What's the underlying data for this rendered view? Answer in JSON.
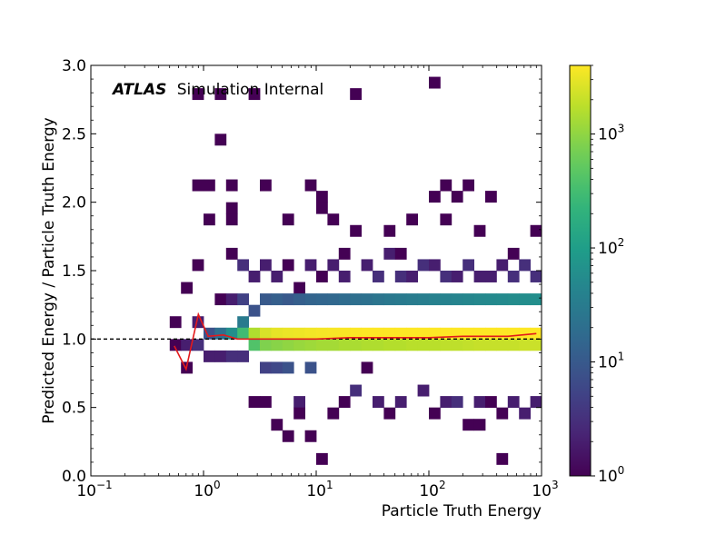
{
  "chart_data": {
    "type": "heatmap",
    "title": "",
    "xlabel": "Particle Truth Energy",
    "ylabel": "Predicted Energy / Particle Truth Energy",
    "xscale": "log",
    "xlim": [
      0.1,
      1000
    ],
    "ylim": [
      0,
      3.0
    ],
    "x_ticks": [
      {
        "value": 0.1,
        "base": "10",
        "exp": "−1"
      },
      {
        "value": 1,
        "base": "10",
        "exp": "0"
      },
      {
        "value": 10,
        "base": "10",
        "exp": "1"
      },
      {
        "value": 100,
        "base": "10",
        "exp": "2"
      },
      {
        "value": 1000,
        "base": "10",
        "exp": "3"
      }
    ],
    "y_ticks": [
      "0.0",
      "0.5",
      "1.0",
      "1.5",
      "2.0",
      "2.5",
      "3.0"
    ],
    "annotation": {
      "bold": "ATLAS",
      "text": "Simulation Internal"
    },
    "reference_line": {
      "y": 1.0,
      "style": "dashed",
      "color": "#000000"
    },
    "colorbar": {
      "scale": "log",
      "min": 1,
      "max": 4000,
      "ticks": [
        {
          "value": 1,
          "base": "10",
          "exp": "0"
        },
        {
          "value": 10,
          "base": "10",
          "exp": "1"
        },
        {
          "value": 100,
          "base": "10",
          "exp": "2"
        },
        {
          "value": 1000,
          "base": "10",
          "exp": "3"
        }
      ],
      "colormap": "viridis"
    },
    "mean_line": {
      "color": "#e31a1c",
      "x": [
        0.55,
        0.7,
        0.9,
        1.1,
        1.5,
        2.0,
        3,
        5,
        10,
        20,
        50,
        100,
        200,
        500,
        900
      ],
      "y": [
        0.95,
        0.78,
        1.18,
        1.02,
        1.03,
        1.0,
        1.0,
        1.0,
        1.0,
        1.01,
        1.01,
        1.01,
        1.02,
        1.02,
        1.04
      ]
    },
    "heatmap_grid": {
      "x_bins": 40,
      "y_bins": 36,
      "note_units": "x bins log-spaced over xlim, y bins linear over ylim"
    },
    "counts": [
      [
        0.55,
        1.15,
        1
      ],
      [
        0.55,
        0.95,
        1
      ],
      [
        0.7,
        1.35,
        1
      ],
      [
        0.7,
        0.95,
        2
      ],
      [
        0.7,
        0.75,
        1
      ],
      [
        0.9,
        2.78,
        1
      ],
      [
        0.9,
        2.15,
        1
      ],
      [
        0.9,
        1.55,
        1
      ],
      [
        0.9,
        1.15,
        2
      ],
      [
        0.9,
        0.95,
        3
      ],
      [
        1.1,
        2.15,
        1
      ],
      [
        1.1,
        1.85,
        1
      ],
      [
        1.1,
        1.05,
        8
      ],
      [
        1.1,
        0.85,
        2
      ],
      [
        1.4,
        2.78,
        1
      ],
      [
        1.4,
        2.45,
        1
      ],
      [
        1.4,
        1.3,
        1
      ],
      [
        1.4,
        1.05,
        20
      ],
      [
        1.4,
        0.85,
        2
      ],
      [
        1.8,
        2.15,
        1
      ],
      [
        1.8,
        1.95,
        1
      ],
      [
        1.8,
        1.85,
        1
      ],
      [
        1.8,
        1.65,
        1
      ],
      [
        1.8,
        1.25,
        2
      ],
      [
        1.8,
        1.05,
        60
      ],
      [
        1.8,
        0.85,
        3
      ],
      [
        2.2,
        1.55,
        3
      ],
      [
        2.2,
        1.25,
        5
      ],
      [
        2.2,
        1.1,
        30
      ],
      [
        2.2,
        1.0,
        300
      ],
      [
        2.2,
        0.85,
        3
      ],
      [
        2.8,
        2.78,
        1
      ],
      [
        2.8,
        1.45,
        2
      ],
      [
        2.8,
        1.2,
        8
      ],
      [
        2.8,
        1.05,
        1500
      ],
      [
        2.8,
        0.95,
        400
      ],
      [
        2.8,
        0.55,
        1
      ],
      [
        3.5,
        2.15,
        1
      ],
      [
        3.5,
        1.55,
        2
      ],
      [
        3.5,
        1.25,
        10
      ],
      [
        3.5,
        1.05,
        2500
      ],
      [
        3.5,
        0.95,
        800
      ],
      [
        3.5,
        0.75,
        5
      ],
      [
        3.5,
        0.55,
        1
      ],
      [
        4.5,
        1.45,
        2
      ],
      [
        4.5,
        1.25,
        12
      ],
      [
        4.5,
        1.05,
        3000
      ],
      [
        4.5,
        0.95,
        900
      ],
      [
        4.5,
        0.75,
        6
      ],
      [
        4.5,
        0.35,
        1
      ],
      [
        5.6,
        1.85,
        1
      ],
      [
        5.6,
        1.55,
        1
      ],
      [
        5.6,
        1.25,
        10
      ],
      [
        5.6,
        1.05,
        3200
      ],
      [
        5.6,
        0.95,
        1000
      ],
      [
        5.6,
        0.75,
        8
      ],
      [
        5.6,
        0.25,
        1
      ],
      [
        7,
        1.35,
        1
      ],
      [
        7,
        1.25,
        12
      ],
      [
        7,
        1.05,
        3300
      ],
      [
        7,
        0.95,
        1100
      ],
      [
        7,
        0.55,
        2
      ],
      [
        7,
        0.45,
        1
      ],
      [
        9,
        2.15,
        1
      ],
      [
        9,
        1.55,
        2
      ],
      [
        9,
        1.25,
        14
      ],
      [
        9,
        1.05,
        3500
      ],
      [
        9,
        0.95,
        1200
      ],
      [
        9,
        0.75,
        8
      ],
      [
        9,
        0.25,
        1
      ],
      [
        11,
        2.05,
        1
      ],
      [
        11,
        1.95,
        1
      ],
      [
        11,
        1.45,
        1
      ],
      [
        11,
        1.25,
        15
      ],
      [
        11,
        1.05,
        3600
      ],
      [
        11,
        0.95,
        1300
      ],
      [
        11,
        0.15,
        1
      ],
      [
        14,
        1.85,
        1
      ],
      [
        14,
        1.55,
        2
      ],
      [
        14,
        1.25,
        16
      ],
      [
        14,
        1.05,
        3700
      ],
      [
        14,
        0.95,
        1300
      ],
      [
        14,
        0.45,
        1
      ],
      [
        18,
        1.65,
        1
      ],
      [
        18,
        1.45,
        2
      ],
      [
        18,
        1.25,
        18
      ],
      [
        18,
        1.05,
        3800
      ],
      [
        18,
        0.95,
        1400
      ],
      [
        18,
        0.55,
        1
      ],
      [
        22,
        2.78,
        1
      ],
      [
        22,
        1.75,
        1
      ],
      [
        22,
        1.25,
        20
      ],
      [
        22,
        1.05,
        3900
      ],
      [
        22,
        0.95,
        1400
      ],
      [
        22,
        0.65,
        3
      ],
      [
        28,
        1.55,
        2
      ],
      [
        28,
        1.25,
        22
      ],
      [
        28,
        1.05,
        4000
      ],
      [
        28,
        0.95,
        1500
      ],
      [
        28,
        0.75,
        1
      ],
      [
        35,
        1.45,
        3
      ],
      [
        35,
        1.25,
        25
      ],
      [
        35,
        1.05,
        4000
      ],
      [
        35,
        0.95,
        1500
      ],
      [
        35,
        0.55,
        2
      ],
      [
        45,
        1.75,
        1
      ],
      [
        45,
        1.65,
        2
      ],
      [
        45,
        1.25,
        28
      ],
      [
        45,
        1.05,
        4000
      ],
      [
        45,
        0.95,
        1600
      ],
      [
        45,
        0.45,
        1
      ],
      [
        56,
        1.65,
        1
      ],
      [
        56,
        1.45,
        3
      ],
      [
        56,
        1.25,
        30
      ],
      [
        56,
        1.05,
        4000
      ],
      [
        56,
        0.95,
        1600
      ],
      [
        56,
        0.55,
        2
      ],
      [
        70,
        1.85,
        1
      ],
      [
        70,
        1.45,
        2
      ],
      [
        70,
        1.25,
        32
      ],
      [
        70,
        1.05,
        4000
      ],
      [
        70,
        0.95,
        1700
      ],
      [
        90,
        1.55,
        3
      ],
      [
        90,
        1.25,
        35
      ],
      [
        90,
        1.05,
        4000
      ],
      [
        90,
        0.95,
        1700
      ],
      [
        90,
        0.65,
        2
      ],
      [
        110,
        2.85,
        1
      ],
      [
        110,
        2.05,
        1
      ],
      [
        110,
        1.55,
        2
      ],
      [
        110,
        1.25,
        38
      ],
      [
        110,
        1.05,
        4000
      ],
      [
        110,
        0.95,
        1700
      ],
      [
        110,
        0.45,
        1
      ],
      [
        140,
        2.15,
        1
      ],
      [
        140,
        1.85,
        1
      ],
      [
        140,
        1.45,
        3
      ],
      [
        140,
        1.25,
        40
      ],
      [
        140,
        1.05,
        4000
      ],
      [
        140,
        0.95,
        1800
      ],
      [
        140,
        0.55,
        2
      ],
      [
        180,
        2.05,
        1
      ],
      [
        180,
        1.45,
        2
      ],
      [
        180,
        1.25,
        42
      ],
      [
        180,
        1.05,
        4000
      ],
      [
        180,
        0.95,
        1800
      ],
      [
        180,
        0.55,
        3
      ],
      [
        220,
        2.15,
        1
      ],
      [
        220,
        1.55,
        3
      ],
      [
        220,
        1.25,
        45
      ],
      [
        220,
        1.05,
        4000
      ],
      [
        220,
        0.95,
        1900
      ],
      [
        220,
        0.35,
        1
      ],
      [
        280,
        1.75,
        1
      ],
      [
        280,
        1.45,
        2
      ],
      [
        280,
        1.25,
        48
      ],
      [
        280,
        1.05,
        4000
      ],
      [
        280,
        0.95,
        2000
      ],
      [
        280,
        0.55,
        2
      ],
      [
        280,
        0.35,
        1
      ],
      [
        350,
        2.05,
        1
      ],
      [
        350,
        1.45,
        2
      ],
      [
        350,
        1.25,
        50
      ],
      [
        350,
        1.05,
        4000
      ],
      [
        350,
        0.95,
        2000
      ],
      [
        350,
        0.55,
        1
      ],
      [
        450,
        1.55,
        2
      ],
      [
        450,
        1.25,
        52
      ],
      [
        450,
        1.05,
        4000
      ],
      [
        450,
        0.95,
        2000
      ],
      [
        450,
        0.45,
        1
      ],
      [
        450,
        0.15,
        1
      ],
      [
        560,
        1.65,
        1
      ],
      [
        560,
        1.45,
        3
      ],
      [
        560,
        1.25,
        55
      ],
      [
        560,
        1.05,
        4000
      ],
      [
        560,
        0.95,
        2000
      ],
      [
        560,
        0.55,
        2
      ],
      [
        700,
        1.55,
        3
      ],
      [
        700,
        1.25,
        58
      ],
      [
        700,
        1.05,
        4000
      ],
      [
        700,
        0.95,
        2100
      ],
      [
        700,
        0.45,
        2
      ],
      [
        900,
        1.75,
        1
      ],
      [
        900,
        1.45,
        3
      ],
      [
        900,
        1.25,
        60
      ],
      [
        900,
        1.05,
        4000
      ],
      [
        900,
        0.95,
        2100
      ],
      [
        900,
        0.55,
        2
      ]
    ]
  }
}
